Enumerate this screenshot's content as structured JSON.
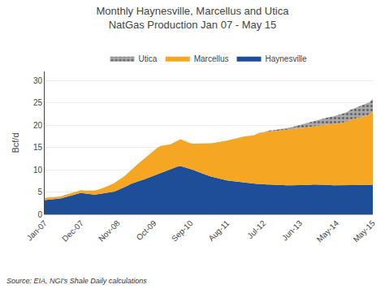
{
  "chart_data": {
    "type": "area",
    "stacked": true,
    "title": "Monthly Haynesville, Marcellus and Utica\nNatGas Production Jan 07 - May 15",
    "ylabel": "Bcf/d",
    "source": "Source: EIA, NGI's Shale Daily calculations",
    "categories": [
      "Jan-07",
      null,
      null,
      null,
      null,
      null,
      null,
      null,
      null,
      null,
      null,
      "Dec-07",
      null,
      null,
      null,
      null,
      null,
      null,
      null,
      null,
      null,
      null,
      "Nov-08",
      null,
      null,
      null,
      null,
      null,
      null,
      null,
      null,
      null,
      null,
      "Oct-09",
      null,
      null,
      null,
      null,
      null,
      null,
      null,
      null,
      null,
      null,
      "Sep-10",
      null,
      null,
      null,
      null,
      null,
      null,
      null,
      null,
      null,
      null,
      "Aug-11",
      null,
      null,
      null,
      null,
      null,
      null,
      null,
      null,
      null,
      null,
      "Jul-12",
      null,
      null,
      null,
      null,
      null,
      null,
      null,
      null,
      null,
      null,
      "Jun-13",
      null,
      null,
      null,
      null,
      null,
      null,
      null,
      null,
      null,
      null,
      "May-14",
      null,
      null,
      null,
      null,
      null,
      null,
      null,
      null,
      null,
      null,
      "May-15"
    ],
    "ylim": [
      0,
      32
    ],
    "yticks": [
      0,
      5,
      10,
      15,
      20,
      25,
      30
    ],
    "grid": true,
    "legend": "top",
    "series": [
      {
        "name": "Haynesville",
        "color": "#1F4E99",
        "values": [
          3.2,
          3.25,
          3.3,
          3.35,
          3.5,
          3.6,
          3.8,
          4.0,
          4.2,
          4.4,
          4.6,
          4.8,
          4.7,
          4.6,
          4.5,
          4.4,
          4.5,
          4.6,
          4.7,
          4.8,
          4.9,
          5.1,
          5.4,
          5.7,
          6.0,
          6.4,
          6.8,
          7.1,
          7.4,
          7.6,
          7.8,
          8.1,
          8.4,
          8.7,
          9.0,
          9.3,
          9.6,
          9.9,
          10.2,
          10.5,
          10.7,
          10.8,
          10.6,
          10.4,
          10.2,
          9.9,
          9.6,
          9.3,
          9.0,
          8.7,
          8.5,
          8.3,
          8.1,
          7.9,
          7.7,
          7.6,
          7.5,
          7.4,
          7.3,
          7.2,
          7.1,
          7.0,
          6.9,
          6.8,
          6.8,
          6.8,
          6.7,
          6.7,
          6.7,
          6.6,
          6.6,
          6.6,
          6.5,
          6.5,
          6.5,
          6.5,
          6.5,
          6.5,
          6.6,
          6.6,
          6.6,
          6.7,
          6.7,
          6.7,
          6.7,
          6.6,
          6.6,
          6.5,
          6.5,
          6.5,
          6.5,
          6.5,
          6.6,
          6.6,
          6.6,
          6.6,
          6.6,
          6.6,
          6.6,
          6.7
        ]
      },
      {
        "name": "Marcellus",
        "color": "#F5A623",
        "values": [
          0.5,
          0.5,
          0.5,
          0.5,
          0.5,
          0.4,
          0.5,
          0.5,
          0.5,
          0.5,
          0.5,
          0.6,
          0.6,
          0.7,
          0.8,
          0.9,
          1.0,
          1.1,
          1.3,
          1.5,
          1.7,
          1.9,
          2.1,
          2.3,
          2.5,
          2.8,
          3.1,
          3.4,
          3.8,
          4.2,
          4.6,
          5.0,
          5.3,
          5.6,
          5.9,
          6.0,
          5.8,
          5.6,
          5.5,
          5.6,
          5.8,
          6.0,
          5.9,
          5.8,
          5.7,
          5.9,
          6.2,
          6.5,
          6.8,
          7.1,
          7.4,
          7.7,
          8.0,
          8.3,
          8.6,
          8.9,
          9.2,
          9.5,
          9.8,
          10.1,
          10.3,
          10.5,
          10.7,
          10.9,
          11.2,
          11.4,
          11.6,
          11.8,
          11.9,
          12.0,
          12.1,
          12.2,
          12.3,
          12.4,
          12.5,
          12.6,
          12.7,
          12.8,
          12.8,
          12.9,
          13.0,
          13.1,
          13.2,
          13.3,
          13.4,
          13.5,
          13.6,
          13.7,
          13.8,
          13.9,
          14.0,
          14.2,
          14.5,
          14.7,
          14.9,
          15.1,
          15.3,
          15.5,
          15.7,
          16.3
        ]
      },
      {
        "name": "Utica",
        "color": "#A8A8A8",
        "values": [
          0.0,
          0.0,
          0.0,
          0.0,
          0.0,
          0.0,
          0.0,
          0.0,
          0.0,
          0.0,
          0.0,
          0.0,
          0.0,
          0.0,
          0.0,
          0.0,
          0.0,
          0.0,
          0.0,
          0.0,
          0.0,
          0.0,
          0.0,
          0.0,
          0.0,
          0.0,
          0.0,
          0.0,
          0.0,
          0.0,
          0.0,
          0.0,
          0.0,
          0.0,
          0.0,
          0.0,
          0.0,
          0.0,
          0.0,
          0.0,
          0.0,
          0.0,
          0.0,
          0.0,
          0.0,
          0.0,
          0.0,
          0.0,
          0.0,
          0.0,
          0.0,
          0.0,
          0.0,
          0.0,
          0.0,
          0.0,
          0.0,
          0.0,
          0.0,
          0.0,
          0.0,
          0.0,
          0.0,
          0.0,
          0.0,
          0.1,
          0.1,
          0.1,
          0.2,
          0.2,
          0.3,
          0.3,
          0.4,
          0.4,
          0.5,
          0.5,
          0.6,
          0.7,
          0.8,
          0.9,
          1.0,
          1.1,
          1.2,
          1.3,
          1.4,
          1.5,
          1.6,
          1.7,
          1.8,
          1.9,
          2.0,
          2.1,
          2.2,
          2.3,
          2.4,
          2.5,
          2.6,
          2.7,
          2.8,
          2.8
        ]
      }
    ]
  }
}
